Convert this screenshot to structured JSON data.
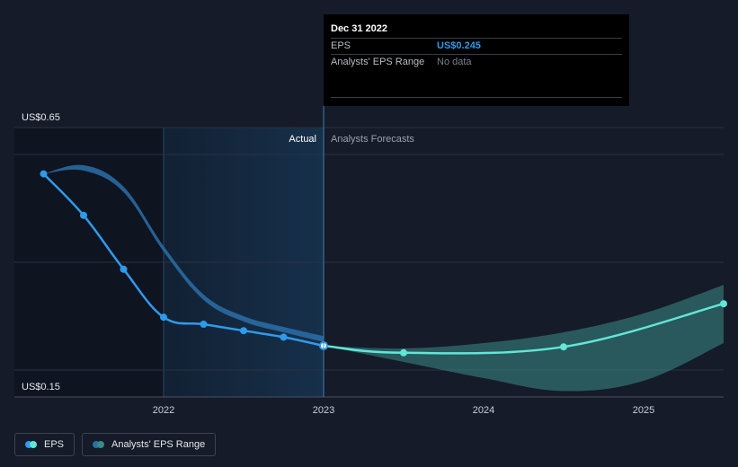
{
  "chart_data": {
    "type": "line",
    "title": "",
    "x_domain": [
      2021.0,
      2025.5
    ],
    "y_range": [
      0.15,
      0.65
    ],
    "y_labels": [
      {
        "value": 0.65,
        "text": "US$0.65"
      },
      {
        "value": 0.15,
        "text": "US$0.15"
      }
    ],
    "x_ticks": [
      {
        "value": 2022,
        "label": "2022"
      },
      {
        "value": 2023,
        "label": "2023"
      },
      {
        "value": 2024,
        "label": "2024"
      },
      {
        "value": 2025,
        "label": "2025"
      }
    ],
    "gridlines": [
      0.6,
      0.4,
      0.2
    ],
    "divider_x": 2023.0,
    "highlight_start": 2022.0,
    "actual_label": "Actual",
    "forecast_label": "Analysts Forecasts",
    "series": [
      {
        "name": "EPS",
        "kind": "actual",
        "color": "#2e9bea",
        "points": [
          {
            "x": 2021.25,
            "y": 0.564
          },
          {
            "x": 2021.5,
            "y": 0.487
          },
          {
            "x": 2021.75,
            "y": 0.387
          },
          {
            "x": 2022.0,
            "y": 0.298
          },
          {
            "x": 2022.25,
            "y": 0.285
          },
          {
            "x": 2022.5,
            "y": 0.273
          },
          {
            "x": 2022.75,
            "y": 0.261
          },
          {
            "x": 2023.0,
            "y": 0.245
          }
        ]
      },
      {
        "name": "EPS",
        "kind": "forecast",
        "color": "#61e6d7",
        "points": [
          {
            "x": 2023.0,
            "y": 0.245
          },
          {
            "x": 2023.5,
            "y": 0.232
          },
          {
            "x": 2024.5,
            "y": 0.243
          },
          {
            "x": 2025.5,
            "y": 0.323
          }
        ]
      }
    ],
    "ranges": [
      {
        "name": "Analysts' EPS Range",
        "kind": "actual",
        "color": "#2a6ea8",
        "high": [
          {
            "x": 2021.25,
            "y": 0.564
          },
          {
            "x": 2021.5,
            "y": 0.58
          },
          {
            "x": 2021.75,
            "y": 0.54
          },
          {
            "x": 2022.0,
            "y": 0.43
          },
          {
            "x": 2022.25,
            "y": 0.34
          },
          {
            "x": 2022.5,
            "y": 0.3
          },
          {
            "x": 2022.75,
            "y": 0.28
          },
          {
            "x": 2023.0,
            "y": 0.263
          }
        ],
        "low": [
          {
            "x": 2021.25,
            "y": 0.564
          },
          {
            "x": 2021.5,
            "y": 0.57
          },
          {
            "x": 2021.75,
            "y": 0.53
          },
          {
            "x": 2022.0,
            "y": 0.42
          },
          {
            "x": 2022.25,
            "y": 0.33
          },
          {
            "x": 2022.5,
            "y": 0.29
          },
          {
            "x": 2022.75,
            "y": 0.27
          },
          {
            "x": 2023.0,
            "y": 0.252
          }
        ]
      },
      {
        "name": "Analysts' EPS Range",
        "kind": "forecast",
        "color": "#3a8c86",
        "high": [
          {
            "x": 2023.0,
            "y": 0.245
          },
          {
            "x": 2023.5,
            "y": 0.24
          },
          {
            "x": 2024.0,
            "y": 0.25
          },
          {
            "x": 2024.5,
            "y": 0.27
          },
          {
            "x": 2025.0,
            "y": 0.305
          },
          {
            "x": 2025.5,
            "y": 0.358
          }
        ],
        "low": [
          {
            "x": 2023.0,
            "y": 0.245
          },
          {
            "x": 2023.5,
            "y": 0.215
          },
          {
            "x": 2024.0,
            "y": 0.185
          },
          {
            "x": 2024.5,
            "y": 0.161
          },
          {
            "x": 2025.0,
            "y": 0.18
          },
          {
            "x": 2025.5,
            "y": 0.25
          }
        ]
      }
    ],
    "tooltip": {
      "date": "Dec 31 2022",
      "rows": [
        {
          "key": "EPS",
          "value": "US$0.245"
        },
        {
          "key": "Analysts' EPS Range",
          "value": "No data"
        }
      ]
    },
    "legend": [
      {
        "label": "EPS",
        "colors": [
          "#2e9bea",
          "#61e6d7"
        ]
      },
      {
        "label": "Analysts' EPS Range",
        "colors": [
          "#2a6ea8",
          "#3a8c86"
        ]
      }
    ],
    "colors": {
      "background": "#151b28",
      "actual_shade": "#0f1421",
      "highlight": "#16304a",
      "grid": "#2b3240",
      "axis": "#4a5160",
      "divider": "#3f7fb3"
    }
  }
}
